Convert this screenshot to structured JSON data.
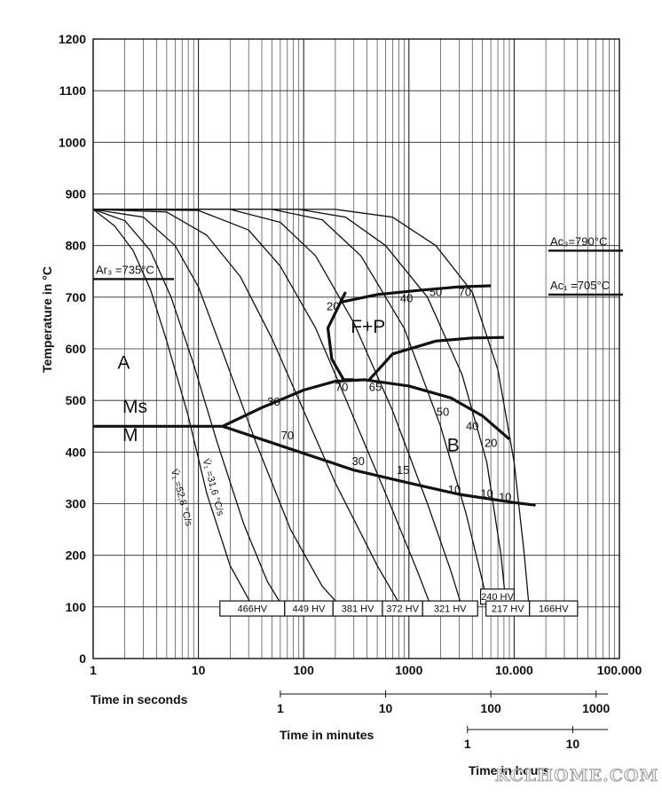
{
  "chart_data": {
    "type": "line",
    "chart_kind": "CCT diagram",
    "ylabel": "Temperature in °C",
    "ylim": [
      0,
      1200
    ],
    "xscale": "log",
    "xlim_seconds": [
      1,
      100000
    ],
    "grid": true,
    "y_ticks": [
      "0",
      "100",
      "200",
      "300",
      "400",
      "500",
      "600",
      "700",
      "800",
      "900",
      "1000",
      "1100",
      "1200"
    ],
    "x_axes": [
      {
        "label": "Time in seconds",
        "ticks": [
          {
            "v": 1,
            "t": "1"
          },
          {
            "v": 10,
            "t": "10"
          },
          {
            "v": 100,
            "t": "100"
          },
          {
            "v": 1000,
            "t": "1000"
          },
          {
            "v": 10000,
            "t": "10.000"
          },
          {
            "v": 100000,
            "t": "100.000"
          }
        ]
      },
      {
        "label": "Time in minutes",
        "ticks": [
          {
            "v": 60,
            "t": "1"
          },
          {
            "v": 600,
            "t": "10"
          },
          {
            "v": 6000,
            "t": "100"
          },
          {
            "v": 60000,
            "t": "1000"
          }
        ]
      },
      {
        "label": "Time in hours",
        "ticks": [
          {
            "v": 3600,
            "t": "1"
          },
          {
            "v": 36000,
            "t": "10"
          }
        ]
      }
    ],
    "critical_temps": [
      {
        "text": "Ar₃ =735°C",
        "temp": 735,
        "side": "left"
      },
      {
        "text": "Ac₃=790°C",
        "temp": 790,
        "side": "right"
      },
      {
        "text": "Ac₁ =705°C",
        "temp": 705,
        "side": "right"
      }
    ],
    "phase_labels": [
      {
        "text": "A",
        "t": 1.7,
        "temp": 575
      },
      {
        "text": "Ms",
        "t": 1.9,
        "temp": 490
      },
      {
        "text": "M",
        "t": 1.9,
        "temp": 435
      },
      {
        "text": "F+P",
        "t": 280,
        "temp": 645
      },
      {
        "text": "B",
        "t": 2300,
        "temp": 415
      }
    ],
    "rate_labels": [
      {
        "text": "V̄₁ =52,8 °C/s",
        "t": 5.5,
        "temp": 365
      },
      {
        "text": "V̄₁ =31,6 °C/s",
        "t": 11,
        "temp": 385
      }
    ],
    "series": [
      {
        "kind": "boundary",
        "points": [
          [
            1,
            450
          ],
          [
            17,
            450
          ]
        ]
      },
      {
        "kind": "boundary",
        "points": [
          [
            17,
            450
          ],
          [
            40,
            486
          ],
          [
            100,
            520
          ],
          [
            200,
            537
          ],
          [
            380,
            540
          ],
          [
            1000,
            528
          ],
          [
            2500,
            505
          ],
          [
            5000,
            470
          ],
          [
            9000,
            425
          ]
        ]
      },
      {
        "kind": "boundary",
        "points": [
          [
            17,
            450
          ],
          [
            70,
            408
          ],
          [
            300,
            365
          ],
          [
            1000,
            340
          ],
          [
            3000,
            318
          ],
          [
            10000,
            302
          ],
          [
            16000,
            297
          ]
        ]
      },
      {
        "kind": "boundary",
        "points": [
          [
            250,
            710
          ],
          [
            170,
            640
          ],
          [
            185,
            580
          ],
          [
            240,
            540
          ],
          [
            300,
            540
          ]
        ]
      },
      {
        "kind": "boundary",
        "points": [
          [
            220,
            690
          ],
          [
            500,
            705
          ],
          [
            1200,
            713
          ],
          [
            3000,
            720
          ],
          [
            6000,
            722
          ]
        ]
      },
      {
        "kind": "boundary",
        "points": [
          [
            420,
            540
          ],
          [
            700,
            590
          ],
          [
            1800,
            615
          ],
          [
            4000,
            621
          ],
          [
            8000,
            622
          ]
        ]
      },
      {
        "kind": "cooling",
        "points": [
          [
            1,
            870
          ],
          [
            1.6,
            838
          ],
          [
            2.4,
            790
          ],
          [
            3.5,
            715
          ],
          [
            5,
            615
          ],
          [
            8,
            470
          ],
          [
            12,
            320
          ],
          [
            20,
            180
          ],
          [
            35,
            90
          ]
        ]
      },
      {
        "kind": "cooling",
        "points": [
          [
            1,
            870
          ],
          [
            2,
            848
          ],
          [
            3.5,
            790
          ],
          [
            5.5,
            700
          ],
          [
            9,
            570
          ],
          [
            15,
            420
          ],
          [
            27,
            260
          ],
          [
            45,
            150
          ],
          [
            68,
            90
          ]
        ]
      },
      {
        "kind": "cooling",
        "points": [
          [
            1,
            870
          ],
          [
            3,
            855
          ],
          [
            6,
            800
          ],
          [
            10,
            720
          ],
          [
            18,
            580
          ],
          [
            35,
            420
          ],
          [
            75,
            250
          ],
          [
            150,
            140
          ],
          [
            250,
            90
          ]
        ]
      },
      {
        "kind": "cooling",
        "points": [
          [
            1,
            870
          ],
          [
            5,
            865
          ],
          [
            12,
            820
          ],
          [
            25,
            740
          ],
          [
            50,
            620
          ],
          [
            100,
            480
          ],
          [
            200,
            340
          ],
          [
            500,
            180
          ],
          [
            900,
            90
          ]
        ]
      },
      {
        "kind": "cooling",
        "points": [
          [
            1,
            870
          ],
          [
            10,
            868
          ],
          [
            30,
            830
          ],
          [
            60,
            760
          ],
          [
            130,
            640
          ],
          [
            280,
            480
          ],
          [
            600,
            320
          ],
          [
            1200,
            170
          ],
          [
            1700,
            90
          ]
        ]
      },
      {
        "kind": "cooling",
        "points": [
          [
            1,
            870
          ],
          [
            20,
            870
          ],
          [
            60,
            845
          ],
          [
            130,
            780
          ],
          [
            300,
            650
          ],
          [
            700,
            480
          ],
          [
            1500,
            300
          ],
          [
            2500,
            170
          ],
          [
            3300,
            90
          ]
        ]
      },
      {
        "kind": "cooling",
        "points": [
          [
            1,
            870
          ],
          [
            50,
            870
          ],
          [
            150,
            850
          ],
          [
            350,
            780
          ],
          [
            900,
            640
          ],
          [
            2000,
            450
          ],
          [
            3500,
            280
          ],
          [
            5000,
            150
          ],
          [
            5800,
            90
          ]
        ]
      },
      {
        "kind": "cooling",
        "points": [
          [
            1,
            870
          ],
          [
            90,
            870
          ],
          [
            250,
            855
          ],
          [
            600,
            800
          ],
          [
            1500,
            700
          ],
          [
            3200,
            550
          ],
          [
            5500,
            380
          ],
          [
            7500,
            200
          ],
          [
            8500,
            90
          ]
        ]
      },
      {
        "kind": "cooling",
        "points": [
          [
            1,
            870
          ],
          [
            200,
            870
          ],
          [
            700,
            855
          ],
          [
            1800,
            800
          ],
          [
            4000,
            710
          ],
          [
            7000,
            560
          ],
          [
            10000,
            380
          ],
          [
            12500,
            200
          ],
          [
            14000,
            90
          ]
        ]
      }
    ],
    "point_labels": [
      {
        "text": "20",
        "t": 190,
        "temp": 675
      },
      {
        "text": "40",
        "t": 950,
        "temp": 690
      },
      {
        "text": "50",
        "t": 1800,
        "temp": 702
      },
      {
        "text": "70",
        "t": 3400,
        "temp": 702
      },
      {
        "text": "30",
        "t": 52,
        "temp": 490
      },
      {
        "text": "70",
        "t": 230,
        "temp": 518
      },
      {
        "text": "65",
        "t": 480,
        "temp": 518
      },
      {
        "text": "50",
        "t": 2100,
        "temp": 470
      },
      {
        "text": "40",
        "t": 4000,
        "temp": 443
      },
      {
        "text": "20",
        "t": 6000,
        "temp": 410
      },
      {
        "text": "70",
        "t": 70,
        "temp": 425
      },
      {
        "text": "30",
        "t": 330,
        "temp": 375
      },
      {
        "text": "15",
        "t": 880,
        "temp": 358
      },
      {
        "text": "10",
        "t": 2700,
        "temp": 320
      },
      {
        "text": "10",
        "t": 5500,
        "temp": 312
      },
      {
        "text": "10",
        "t": 8200,
        "temp": 305
      }
    ],
    "hardness": [
      {
        "text": "466HV",
        "t_left": 16,
        "t_right": 66,
        "row": "low"
      },
      {
        "text": "449 HV",
        "t_left": 66,
        "t_right": 190,
        "row": "low"
      },
      {
        "text": "381 HV",
        "t_left": 190,
        "t_right": 560,
        "row": "low"
      },
      {
        "text": "372 HV",
        "t_left": 560,
        "t_right": 1350,
        "row": "low"
      },
      {
        "text": "321 HV",
        "t_left": 1350,
        "t_right": 4500,
        "row": "low"
      },
      {
        "text": "240 HV",
        "t_left": 4800,
        "t_right": 10000,
        "row": "high"
      },
      {
        "text": "217 HV",
        "t_left": 5400,
        "t_right": 14000,
        "row": "low"
      },
      {
        "text": "166HV",
        "t_left": 14000,
        "t_right": 40000,
        "row": "low"
      }
    ]
  },
  "watermark": "KCLHOME.COM"
}
